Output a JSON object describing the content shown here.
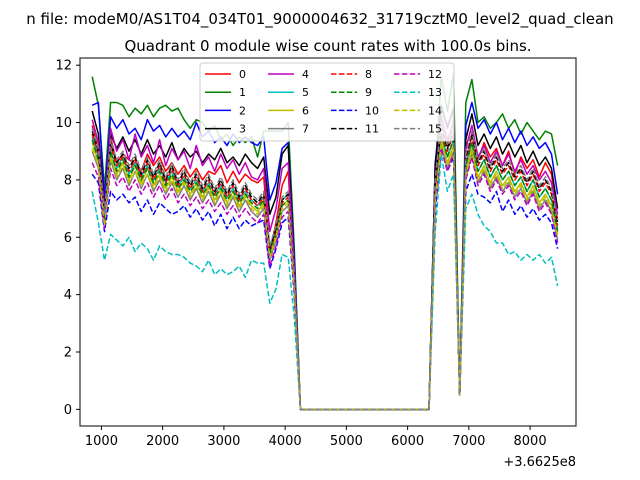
{
  "figure": {
    "suptitle": "n file: modeM0/AS1T04_034T01_9000004632_31719cztM0_level2_quad_clean",
    "background": "#ffffff"
  },
  "chart_data": {
    "type": "line",
    "title": "Quadrant 0 module wise count rates with 100.0s bins.",
    "xlabel": "",
    "ylabel": "",
    "x_offset_label": "+3.6625e8",
    "xlim": [
      650,
      8750
    ],
    "ylim": [
      -0.58,
      12.25
    ],
    "xticks": [
      1000,
      2000,
      3000,
      4000,
      5000,
      6000,
      7000,
      8000
    ],
    "yticks": [
      0,
      2,
      4,
      6,
      8,
      10,
      12
    ],
    "grid": false,
    "legend": {
      "location": "top-center",
      "ncol": 4
    },
    "x": [
      850,
      950,
      1050,
      1150,
      1250,
      1350,
      1450,
      1550,
      1650,
      1750,
      1850,
      1950,
      2050,
      2150,
      2250,
      2350,
      2450,
      2550,
      2650,
      2750,
      2850,
      2950,
      3050,
      3150,
      3250,
      3350,
      3450,
      3550,
      3650,
      3750,
      3850,
      3950,
      4050,
      4150,
      4250,
      4350,
      6350,
      6450,
      6550,
      6650,
      6750,
      6850,
      6950,
      7050,
      7150,
      7250,
      7350,
      7450,
      7550,
      7650,
      7750,
      7850,
      7950,
      8050,
      8150,
      8250,
      8350,
      8450
    ],
    "series": [
      {
        "name": "0",
        "color": "#ff0000",
        "dash": "solid",
        "values": [
          9.9,
          9.1,
          6.8,
          9.5,
          8.6,
          8.9,
          8.7,
          8.6,
          8.3,
          8.9,
          8.5,
          8.8,
          8.3,
          8.6,
          8.2,
          8.5,
          8.1,
          8.4,
          8.0,
          8.3,
          8.2,
          8.5,
          7.9,
          8.3,
          7.9,
          8.2,
          8.0,
          7.9,
          8.1,
          5.5,
          6.5,
          7.8,
          8.3,
          4.5,
          0,
          0,
          0,
          8.2,
          10.0,
          9.2,
          10.1,
          0.5,
          8.4,
          9.6,
          8.7,
          9.3,
          8.8,
          9.1,
          8.5,
          9.0,
          8.2,
          8.8,
          8.4,
          8.7,
          8.1,
          8.6,
          8.2,
          6.6
        ]
      },
      {
        "name": "1",
        "color": "#008000",
        "dash": "solid",
        "values": [
          11.6,
          10.6,
          7.7,
          10.7,
          10.7,
          10.6,
          10.2,
          10.5,
          10.3,
          10.6,
          10.2,
          10.5,
          10.6,
          10.4,
          10.5,
          10.1,
          9.8,
          10.1,
          10.0,
          9.7,
          9.9,
          9.4,
          9.6,
          9.2,
          9.5,
          9.3,
          9.5,
          8.8,
          9.7,
          9.7,
          9.7,
          9.7,
          10.0,
          5.6,
          0,
          0,
          0,
          8.3,
          11.6,
          10.4,
          11.7,
          0.5,
          10.7,
          11.5,
          10.0,
          10.2,
          9.8,
          10.0,
          10.3,
          9.8,
          10.1,
          9.6,
          10.0,
          9.7,
          9.4,
          9.7,
          9.6,
          8.5
        ]
      },
      {
        "name": "2",
        "color": "#0000ff",
        "dash": "solid",
        "values": [
          10.6,
          10.7,
          7.3,
          10.2,
          9.8,
          10.1,
          9.6,
          9.8,
          9.4,
          10.1,
          9.7,
          9.9,
          9.5,
          9.8,
          9.5,
          9.7,
          9.4,
          10.0,
          9.5,
          9.7,
          9.3,
          9.5,
          9.2,
          9.6,
          9.3,
          9.5,
          9.3,
          9.2,
          9.5,
          7.3,
          7.9,
          9.1,
          9.3,
          5.3,
          0,
          0,
          0,
          8.6,
          10.5,
          9.9,
          10.4,
          0.5,
          9.9,
          10.7,
          9.8,
          10.1,
          9.6,
          10.0,
          9.4,
          9.8,
          9.3,
          9.7,
          9.2,
          9.5,
          9.1,
          9.3,
          8.9,
          7.5
        ]
      },
      {
        "name": "3",
        "color": "#000000",
        "dash": "solid",
        "values": [
          10.4,
          9.6,
          7.0,
          9.6,
          9.1,
          9.5,
          9.0,
          9.4,
          8.9,
          9.4,
          8.9,
          9.2,
          8.8,
          9.3,
          8.7,
          9.1,
          8.8,
          9.0,
          8.6,
          8.9,
          8.7,
          9.1,
          8.6,
          8.8,
          8.5,
          8.9,
          8.6,
          8.4,
          8.8,
          6.8,
          7.4,
          8.9,
          9.2,
          5.0,
          0,
          0,
          0,
          8.5,
          10.6,
          9.8,
          10.5,
          0.5,
          9.4,
          10.3,
          9.2,
          9.6,
          9.1,
          9.5,
          8.9,
          9.3,
          8.8,
          9.2,
          8.6,
          9.0,
          8.5,
          8.8,
          8.4,
          7.0
        ]
      },
      {
        "name": "4",
        "color": "#bf00bf",
        "dash": "solid",
        "values": [
          10.1,
          9.3,
          6.9,
          9.8,
          9.0,
          9.4,
          8.7,
          9.6,
          8.8,
          9.2,
          8.6,
          9.4,
          8.5,
          9.1,
          8.7,
          9.0,
          8.4,
          9.2,
          8.5,
          8.8,
          8.3,
          8.9,
          8.4,
          8.7,
          8.2,
          8.6,
          8.1,
          8.0,
          8.4,
          6.2,
          7.0,
          8.4,
          8.6,
          4.9,
          0,
          0,
          0,
          8.0,
          10.2,
          9.4,
          10.0,
          0.5,
          9.1,
          9.9,
          8.8,
          9.2,
          8.6,
          9.0,
          8.5,
          8.9,
          8.3,
          8.7,
          8.2,
          8.5,
          8.0,
          8.3,
          7.9,
          6.8
        ]
      },
      {
        "name": "5",
        "color": "#00bfbf",
        "dash": "solid",
        "values": [
          9.5,
          8.8,
          6.7,
          9.0,
          8.4,
          8.8,
          8.2,
          8.6,
          8.1,
          8.5,
          8.0,
          8.4,
          7.9,
          8.3,
          7.8,
          8.1,
          7.7,
          8.0,
          7.6,
          7.9,
          7.5,
          7.8,
          7.4,
          7.7,
          7.3,
          7.6,
          7.3,
          7.1,
          7.4,
          5.6,
          6.3,
          7.3,
          7.5,
          4.5,
          0,
          0,
          0,
          7.6,
          9.6,
          8.8,
          9.4,
          0.5,
          8.5,
          9.3,
          8.3,
          8.7,
          8.1,
          8.5,
          8.0,
          8.3,
          7.8,
          8.1,
          7.6,
          8.0,
          7.4,
          7.7,
          7.3,
          6.3
        ]
      },
      {
        "name": "6",
        "color": "#bfbf00",
        "dash": "solid",
        "values": [
          9.3,
          8.6,
          6.5,
          8.9,
          8.2,
          8.6,
          8.0,
          8.5,
          7.9,
          8.4,
          7.8,
          8.2,
          7.7,
          8.1,
          7.6,
          8.0,
          7.5,
          7.9,
          7.4,
          7.8,
          7.3,
          7.7,
          7.2,
          7.6,
          7.1,
          7.5,
          7.1,
          6.9,
          7.2,
          5.4,
          6.1,
          7.1,
          7.3,
          4.3,
          0,
          0,
          0,
          7.4,
          9.4,
          8.6,
          9.2,
          0.5,
          8.3,
          9.1,
          8.1,
          8.5,
          7.9,
          8.3,
          7.8,
          8.1,
          7.6,
          7.9,
          7.4,
          7.8,
          7.2,
          7.5,
          7.1,
          6.1
        ]
      },
      {
        "name": "7",
        "color": "#7f7f7f",
        "dash": "solid",
        "values": [
          9.0,
          8.4,
          6.4,
          8.7,
          8.0,
          8.4,
          7.8,
          8.3,
          7.7,
          8.2,
          7.6,
          8.0,
          7.5,
          7.9,
          7.4,
          7.8,
          7.3,
          7.7,
          7.2,
          7.6,
          7.1,
          7.5,
          7.0,
          7.4,
          6.9,
          7.3,
          6.9,
          6.7,
          7.0,
          5.2,
          5.9,
          6.9,
          7.1,
          4.2,
          0,
          0,
          0,
          7.2,
          9.2,
          8.4,
          9.0,
          0.5,
          8.1,
          8.9,
          7.9,
          8.3,
          7.7,
          8.1,
          7.6,
          7.9,
          7.4,
          7.7,
          7.2,
          7.6,
          7.0,
          7.3,
          6.9,
          5.9
        ]
      },
      {
        "name": "8",
        "color": "#ff0000",
        "dash": "dashed",
        "values": [
          9.6,
          8.9,
          6.6,
          9.2,
          8.5,
          8.8,
          8.3,
          8.7,
          8.1,
          8.6,
          8.0,
          8.5,
          7.9,
          8.4,
          7.8,
          8.2,
          7.7,
          8.1,
          7.6,
          8.0,
          7.5,
          7.9,
          7.4,
          7.8,
          7.3,
          7.7,
          7.3,
          7.1,
          7.4,
          5.5,
          6.2,
          7.2,
          7.4,
          4.4,
          0,
          0,
          0,
          7.8,
          9.8,
          9.0,
          9.6,
          0.5,
          8.7,
          9.5,
          8.5,
          8.9,
          8.3,
          8.7,
          8.2,
          8.5,
          8.0,
          8.3,
          7.8,
          8.2,
          7.6,
          7.9,
          7.5,
          6.4
        ]
      },
      {
        "name": "9",
        "color": "#008000",
        "dash": "dashed",
        "values": [
          9.4,
          8.7,
          6.5,
          9.0,
          8.3,
          8.7,
          8.1,
          8.5,
          8.0,
          8.4,
          7.9,
          8.3,
          7.8,
          8.2,
          7.7,
          8.0,
          7.6,
          7.9,
          7.5,
          7.8,
          7.4,
          7.7,
          7.3,
          7.6,
          7.2,
          7.5,
          7.2,
          7.0,
          7.3,
          5.4,
          6.1,
          7.1,
          7.3,
          4.3,
          0,
          0,
          0,
          7.6,
          9.6,
          8.8,
          9.4,
          0.5,
          8.5,
          9.3,
          8.3,
          8.7,
          8.1,
          8.5,
          8.0,
          8.3,
          7.8,
          8.1,
          7.6,
          8.0,
          7.4,
          7.7,
          7.3,
          6.2
        ]
      },
      {
        "name": "10",
        "color": "#0000ff",
        "dash": "dashed",
        "values": [
          8.2,
          7.9,
          6.2,
          7.6,
          7.3,
          7.5,
          7.2,
          7.4,
          6.9,
          7.3,
          6.8,
          7.2,
          7.0,
          6.8,
          6.9,
          7.1,
          6.7,
          7.0,
          6.6,
          6.9,
          6.4,
          6.8,
          6.3,
          6.7,
          6.3,
          6.6,
          6.4,
          6.5,
          6.6,
          4.9,
          5.6,
          6.5,
          6.7,
          4.0,
          0,
          0,
          0,
          6.9,
          9.1,
          8.3,
          8.8,
          0.5,
          7.6,
          8.2,
          7.5,
          7.4,
          7.2,
          7.6,
          6.9,
          7.3,
          6.8,
          7.1,
          6.7,
          7.0,
          6.6,
          6.8,
          6.5,
          5.6
        ]
      },
      {
        "name": "11",
        "color": "#000000",
        "dash": "dashed",
        "values": [
          9.7,
          9.0,
          6.7,
          9.3,
          8.6,
          8.9,
          8.4,
          8.8,
          8.2,
          8.7,
          8.1,
          8.6,
          8.0,
          8.5,
          7.9,
          8.3,
          7.8,
          8.2,
          7.7,
          8.1,
          7.6,
          8.0,
          7.5,
          7.9,
          7.4,
          7.8,
          7.4,
          7.2,
          7.5,
          5.6,
          6.3,
          7.3,
          7.5,
          4.5,
          0,
          0,
          0,
          7.9,
          9.9,
          9.1,
          9.7,
          0.5,
          8.8,
          9.6,
          8.6,
          9.0,
          8.4,
          8.8,
          8.3,
          8.6,
          8.1,
          8.4,
          7.9,
          8.3,
          7.7,
          8.0,
          7.6,
          6.5
        ]
      },
      {
        "name": "12",
        "color": "#bf00bf",
        "dash": "dashed",
        "values": [
          8.6,
          8.1,
          6.3,
          8.4,
          7.8,
          8.1,
          7.6,
          8.0,
          7.5,
          7.9,
          7.4,
          7.8,
          7.3,
          7.7,
          7.2,
          7.5,
          7.1,
          7.4,
          7.0,
          7.3,
          6.9,
          7.2,
          6.8,
          7.1,
          6.7,
          7.0,
          6.7,
          6.5,
          6.8,
          5.0,
          5.7,
          6.7,
          6.9,
          4.1,
          0,
          0,
          0,
          7.1,
          9.1,
          8.3,
          8.9,
          0.5,
          8.0,
          8.8,
          7.8,
          8.2,
          7.6,
          8.0,
          7.5,
          7.8,
          7.3,
          7.6,
          7.1,
          7.5,
          6.9,
          7.2,
          6.8,
          5.8
        ]
      },
      {
        "name": "13",
        "color": "#00bfbf",
        "dash": "dashed",
        "values": [
          7.6,
          6.5,
          5.2,
          6.1,
          5.9,
          5.7,
          6.0,
          5.5,
          5.8,
          5.6,
          5.2,
          5.7,
          5.5,
          5.4,
          5.4,
          5.3,
          5.1,
          5.0,
          4.8,
          5.2,
          4.7,
          4.9,
          4.7,
          4.8,
          5.0,
          4.6,
          5.2,
          5.1,
          5.1,
          3.7,
          4.2,
          5.4,
          5.3,
          3.2,
          0,
          0,
          0,
          6.2,
          8.9,
          7.6,
          8.2,
          0.5,
          7.0,
          7.5,
          6.8,
          6.4,
          6.2,
          5.8,
          5.8,
          5.4,
          5.5,
          5.2,
          5.4,
          5.2,
          5.4,
          5.1,
          5.3,
          4.3
        ]
      },
      {
        "name": "14",
        "color": "#bfbf00",
        "dash": "dashed",
        "values": [
          9.1,
          8.5,
          6.4,
          8.8,
          8.1,
          8.5,
          7.9,
          8.3,
          7.8,
          8.2,
          7.7,
          8.1,
          7.6,
          8.0,
          7.5,
          7.9,
          7.4,
          7.8,
          7.3,
          7.7,
          7.2,
          7.6,
          7.1,
          7.5,
          7.0,
          7.4,
          7.0,
          6.8,
          7.1,
          5.3,
          6.0,
          7.0,
          7.2,
          4.2,
          0,
          0,
          0,
          7.3,
          9.3,
          8.5,
          9.1,
          0.5,
          8.2,
          9.0,
          8.0,
          8.4,
          7.8,
          8.2,
          7.7,
          8.0,
          7.5,
          7.8,
          7.3,
          7.7,
          7.1,
          7.4,
          7.0,
          6.0
        ]
      },
      {
        "name": "15",
        "color": "#7f7f7f",
        "dash": "dashed",
        "values": [
          9.8,
          9.1,
          6.8,
          9.4,
          8.7,
          9.0,
          8.5,
          8.9,
          8.3,
          8.8,
          8.2,
          8.7,
          8.1,
          8.6,
          8.0,
          8.4,
          7.9,
          8.3,
          7.8,
          8.2,
          7.7,
          8.1,
          7.6,
          8.0,
          7.5,
          7.9,
          7.5,
          7.3,
          7.6,
          5.7,
          6.4,
          7.4,
          7.6,
          4.6,
          0,
          0,
          0,
          8.0,
          10.0,
          9.2,
          9.8,
          0.5,
          8.9,
          9.7,
          8.7,
          9.1,
          8.5,
          8.9,
          8.4,
          8.7,
          8.2,
          8.5,
          8.0,
          8.4,
          7.8,
          8.1,
          7.7,
          6.6
        ]
      }
    ]
  }
}
